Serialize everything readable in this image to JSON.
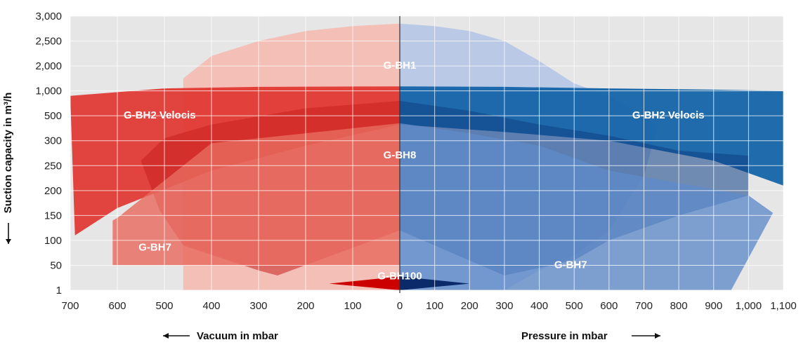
{
  "chart_data": {
    "type": "area",
    "xlabel_left": "Vacuum in mbar",
    "xlabel_right": "Pressure in mbar",
    "ylabel": "Suction capacity in m³/h",
    "x_ticks_vacuum": [
      "700",
      "600",
      "500",
      "400",
      "300",
      "200",
      "100",
      "0"
    ],
    "x_ticks_pressure": [
      "100",
      "200",
      "300",
      "400",
      "500",
      "600",
      "700",
      "800",
      "900",
      "1,000",
      "1,100"
    ],
    "y_ticks": [
      "1",
      "50",
      "100",
      "150",
      "200",
      "250",
      "300",
      "500",
      "1,000",
      "2,000",
      "2,500",
      "3,000"
    ],
    "grid": true,
    "colors": {
      "vacuum": "#d42027",
      "pressure": "#1a5ea8",
      "background": "#e6e6e6",
      "grid": "#ffffff"
    },
    "series": [
      {
        "name": "G-BH1",
        "vacuum": [
          [
            0,
            2850
          ],
          [
            100,
            2800
          ],
          [
            200,
            2700
          ],
          [
            300,
            2500
          ],
          [
            400,
            2200
          ],
          [
            460,
            1500
          ],
          [
            460,
            1
          ],
          [
            0,
            1
          ]
        ],
        "pressure": [
          [
            0,
            2850
          ],
          [
            100,
            2800
          ],
          [
            200,
            2700
          ],
          [
            300,
            2500
          ],
          [
            400,
            2100
          ],
          [
            500,
            1300
          ],
          [
            600,
            900
          ],
          [
            700,
            500
          ],
          [
            740,
            420
          ],
          [
            700,
            230
          ],
          [
            600,
            120
          ],
          [
            500,
            70
          ],
          [
            400,
            40
          ],
          [
            300,
            1
          ],
          [
            0,
            1
          ]
        ]
      },
      {
        "name": "G-BH2 Velocis",
        "vacuum": [
          [
            0,
            1180
          ],
          [
            300,
            1160
          ],
          [
            500,
            1100
          ],
          [
            700,
            900
          ],
          [
            690,
            110
          ],
          [
            600,
            165
          ],
          [
            400,
            240
          ],
          [
            200,
            290
          ],
          [
            0,
            430
          ],
          [
            0,
            1180
          ]
        ],
        "pressure": [
          [
            0,
            1180
          ],
          [
            300,
            1160
          ],
          [
            600,
            1100
          ],
          [
            900,
            1050
          ],
          [
            1100,
            1000
          ],
          [
            1100,
            210
          ],
          [
            900,
            260
          ],
          [
            600,
            300
          ],
          [
            300,
            370
          ],
          [
            0,
            430
          ],
          [
            0,
            1180
          ]
        ]
      },
      {
        "name": "G-BH8",
        "vacuum": [
          [
            0,
            800
          ],
          [
            200,
            650
          ],
          [
            400,
            430
          ],
          [
            500,
            320
          ],
          [
            550,
            260
          ],
          [
            510,
            160
          ],
          [
            460,
            90
          ],
          [
            300,
            40
          ],
          [
            260,
            30
          ],
          [
            0,
            120
          ],
          [
            0,
            800
          ]
        ],
        "pressure": [
          [
            0,
            800
          ],
          [
            200,
            600
          ],
          [
            400,
            430
          ],
          [
            600,
            340
          ],
          [
            800,
            280
          ],
          [
            1000,
            270
          ],
          [
            1000,
            190
          ],
          [
            800,
            150
          ],
          [
            600,
            100
          ],
          [
            500,
            60
          ],
          [
            300,
            30
          ],
          [
            0,
            120
          ],
          [
            0,
            800
          ]
        ]
      },
      {
        "name": "G-BH7",
        "vacuum": [
          [
            0,
            440
          ],
          [
            200,
            360
          ],
          [
            400,
            295
          ],
          [
            600,
            145
          ],
          [
            610,
            140
          ],
          [
            610,
            50
          ],
          [
            0,
            50
          ],
          [
            0,
            440
          ]
        ],
        "pressure": [
          [
            0,
            440
          ],
          [
            200,
            360
          ],
          [
            400,
            290
          ],
          [
            600,
            240
          ],
          [
            1000,
            190
          ],
          [
            1070,
            155
          ],
          [
            950,
            1
          ],
          [
            0,
            1
          ],
          [
            0,
            440
          ]
        ]
      },
      {
        "name": "G-BH100",
        "vacuum": [
          [
            0,
            28
          ],
          [
            150,
            14
          ],
          [
            0,
            1
          ]
        ],
        "pressure": [
          [
            0,
            28
          ],
          [
            200,
            14
          ],
          [
            0,
            1
          ]
        ]
      }
    ],
    "labels": [
      {
        "text": "G-BH1",
        "x": 0,
        "y": 2000
      },
      {
        "text": "G-BH2 Velocis",
        "x": -510,
        "y": 500
      },
      {
        "text": "G-BH2 Velocis",
        "x": 770,
        "y": 500
      },
      {
        "text": "G-BH8",
        "x": 0,
        "y": 270
      },
      {
        "text": "G-BH7",
        "x": -520,
        "y": 85
      },
      {
        "text": "G-BH7",
        "x": 490,
        "y": 50
      },
      {
        "text": "G-BH100",
        "x": 0,
        "y": 28
      }
    ]
  }
}
